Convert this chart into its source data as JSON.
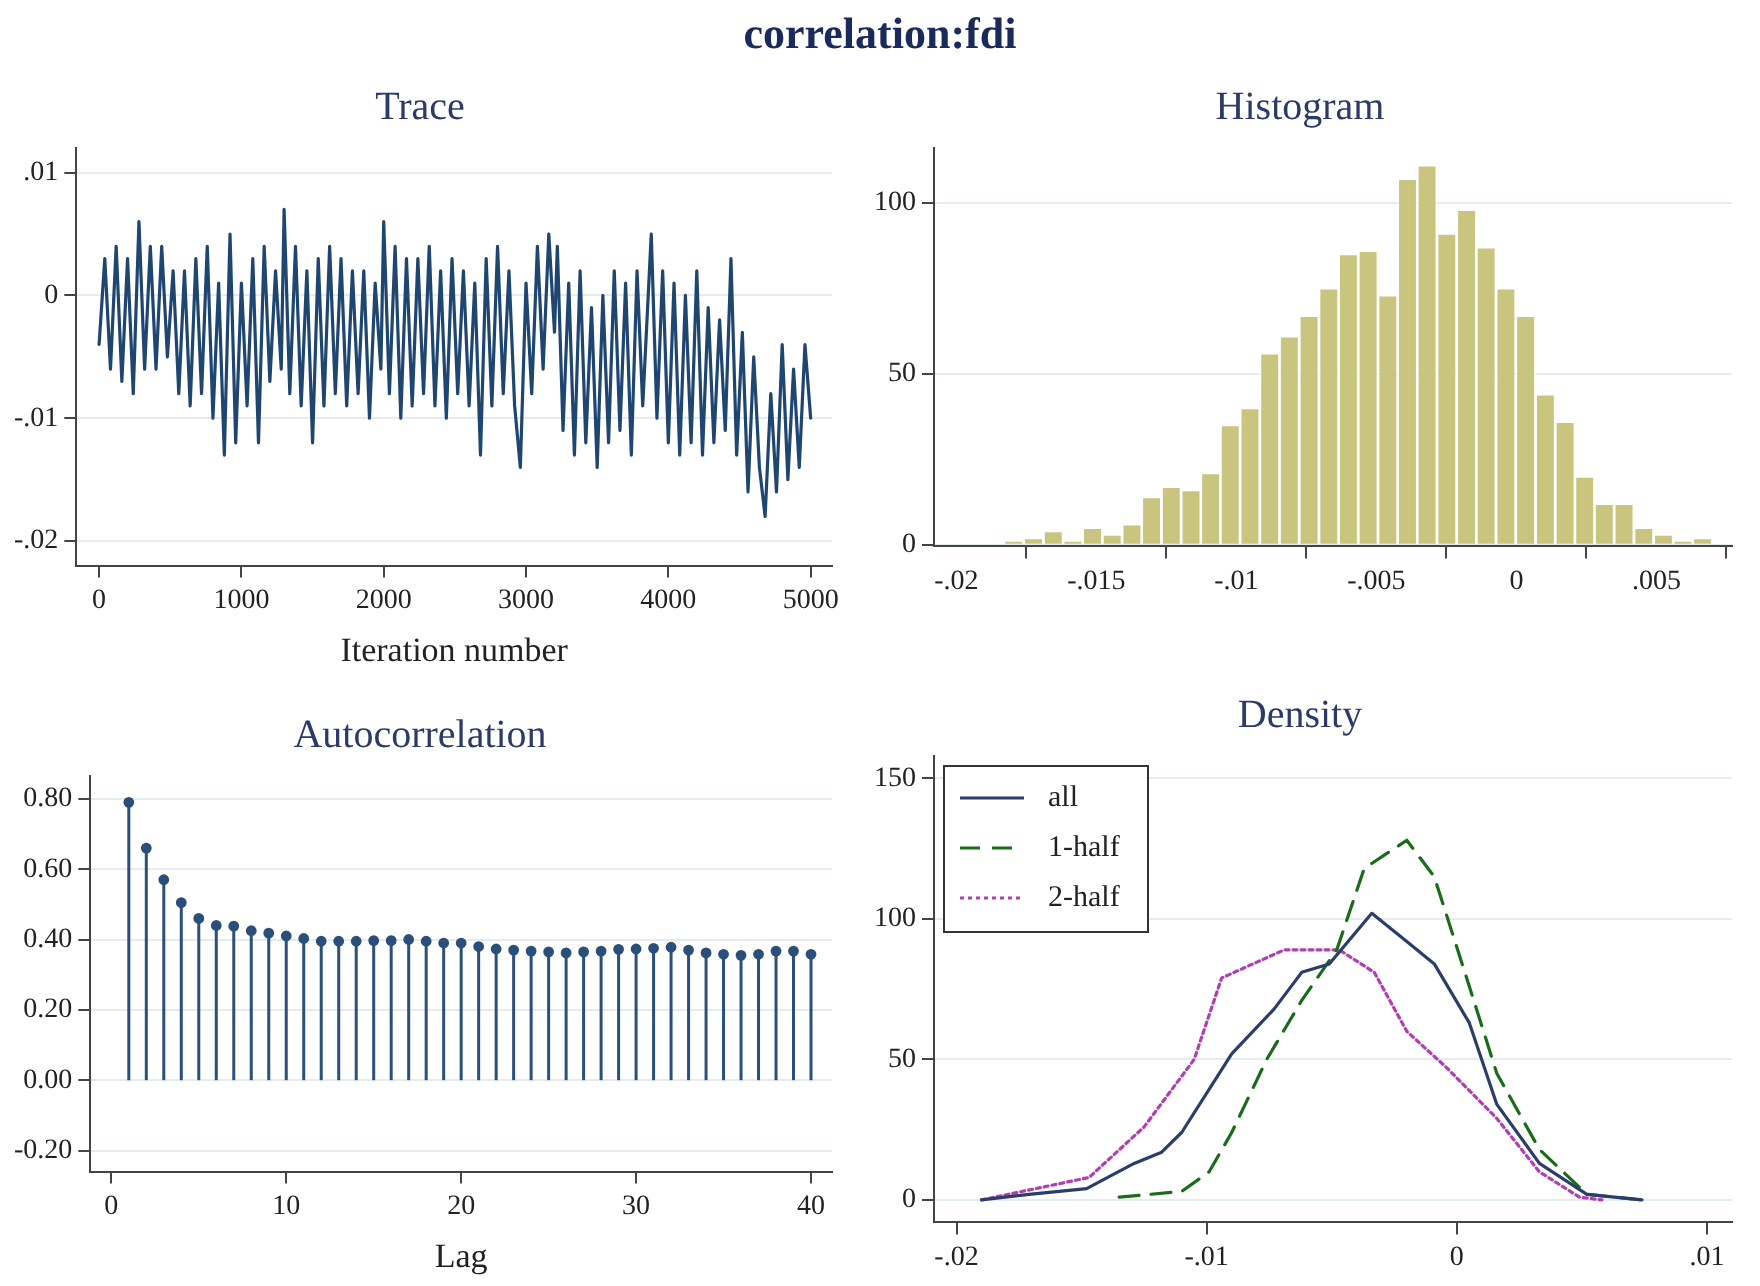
{
  "chart_data": [
    {
      "type": "line",
      "title": "Trace",
      "xlabel": "Iteration number",
      "annotations": [
        "correlation:fdi"
      ],
      "color": "#1f4670",
      "marker": "none",
      "grid": "y",
      "x": [
        0,
        40,
        80,
        120,
        160,
        200,
        240,
        280,
        320,
        360,
        400,
        440,
        480,
        520,
        560,
        600,
        640,
        680,
        720,
        760,
        800,
        840,
        880,
        920,
        960,
        1000,
        1040,
        1080,
        1120,
        1160,
        1200,
        1240,
        1280,
        1300,
        1340,
        1380,
        1420,
        1460,
        1500,
        1540,
        1580,
        1620,
        1660,
        1700,
        1740,
        1780,
        1820,
        1860,
        1900,
        1940,
        1980,
        2000,
        2040,
        2080,
        2120,
        2160,
        2200,
        2240,
        2280,
        2320,
        2360,
        2400,
        2440,
        2480,
        2520,
        2560,
        2600,
        2640,
        2680,
        2720,
        2760,
        2800,
        2840,
        2880,
        2920,
        2960,
        3000,
        3040,
        3080,
        3120,
        3160,
        3200,
        3220,
        3260,
        3300,
        3340,
        3380,
        3420,
        3460,
        3500,
        3540,
        3580,
        3620,
        3660,
        3700,
        3740,
        3780,
        3820,
        3880,
        3920,
        3960,
        4000,
        4040,
        4080,
        4120,
        4160,
        4200,
        4240,
        4280,
        4320,
        4360,
        4400,
        4440,
        4480,
        4520,
        4560,
        4600,
        4640,
        4680,
        4720,
        4760,
        4800,
        4840,
        4880,
        4920,
        4960,
        5000
      ],
      "values": [
        -0.004,
        0.003,
        -0.006,
        0.004,
        -0.007,
        0.003,
        -0.008,
        0.006,
        -0.006,
        0.004,
        -0.006,
        0.004,
        -0.005,
        0.002,
        -0.008,
        0.002,
        -0.009,
        0.003,
        -0.008,
        0.004,
        -0.01,
        0.001,
        -0.013,
        0.005,
        -0.012,
        0.001,
        -0.009,
        0.003,
        -0.012,
        0.004,
        -0.007,
        0.002,
        -0.006,
        0.007,
        -0.008,
        0.004,
        -0.009,
        0.002,
        -0.012,
        0.003,
        -0.009,
        0.004,
        -0.008,
        0.003,
        -0.009,
        0.002,
        -0.008,
        0.002,
        -0.01,
        0.001,
        -0.006,
        0.006,
        -0.008,
        0.004,
        -0.01,
        0.003,
        -0.009,
        0.003,
        -0.008,
        0.004,
        -0.009,
        0.002,
        -0.01,
        0.003,
        -0.008,
        0.002,
        -0.009,
        0.001,
        -0.013,
        0.003,
        -0.009,
        0.004,
        -0.008,
        0.002,
        -0.009,
        -0.014,
        0.001,
        -0.008,
        0.004,
        -0.006,
        0.005,
        -0.003,
        0.004,
        -0.011,
        0.001,
        -0.013,
        0.002,
        -0.012,
        -0.001,
        -0.014,
        0.0,
        -0.012,
        0.002,
        -0.011,
        0.001,
        -0.013,
        0.002,
        -0.009,
        0.005,
        -0.01,
        0.002,
        -0.012,
        0.001,
        -0.013,
        0.0,
        -0.012,
        0.002,
        -0.013,
        -0.001,
        -0.012,
        -0.002,
        -0.011,
        0.003,
        -0.013,
        -0.003,
        -0.016,
        -0.005,
        -0.014,
        -0.018,
        -0.008,
        -0.016,
        -0.004,
        -0.015,
        -0.006,
        -0.014,
        -0.004,
        -0.01
      ],
      "xlim": [
        -160,
        5150
      ],
      "xticks": [
        0,
        1000,
        2000,
        3000,
        4000,
        5000
      ],
      "ylim": [
        -0.022,
        0.012
      ],
      "yticks": [
        {
          "value": -0.02,
          "label": "-.02"
        },
        {
          "value": -0.01,
          "label": "-.01"
        },
        0,
        {
          "value": 0.01,
          "label": ".01"
        }
      ]
    },
    {
      "type": "histogram",
      "title": "Histogram",
      "color": "#c9c47e",
      "grid": "y",
      "bins": [
        -0.0183,
        -0.0176,
        -0.01689,
        -0.01619,
        -0.01549,
        -0.01479,
        -0.01408,
        -0.01338,
        -0.01268,
        -0.01197,
        -0.01127,
        -0.01057,
        -0.00987,
        -0.00916,
        -0.00846,
        -0.00776,
        -0.00705,
        -0.00635,
        -0.00565,
        -0.00494,
        -0.00424,
        -0.00354,
        -0.00284,
        -0.00213,
        -0.00143,
        -0.00073,
        -2e-05,
        0.00068,
        0.00139,
        0.00209,
        0.00279,
        0.00349,
        0.0042,
        0.0049,
        0.0056,
        0.0063,
        0.007
      ],
      "values": [
        1,
        2,
        4,
        1,
        5,
        3,
        6,
        14,
        17,
        16,
        21,
        35,
        40,
        56,
        61,
        67,
        75,
        85,
        86,
        73,
        107,
        111,
        91,
        98,
        87,
        75,
        67,
        44,
        36,
        20,
        12,
        12,
        5,
        3,
        1,
        2
      ],
      "xlim": [
        -0.0208,
        0.0077
      ],
      "xticks": [
        {
          "value": -0.02,
          "label": "-.02"
        },
        {
          "value": -0.015,
          "label": "-.015"
        },
        {
          "value": -0.01,
          "label": "-.01"
        },
        {
          "value": -0.005,
          "label": "-.005"
        },
        0,
        {
          "value": 0.005,
          "label": ".005"
        }
      ],
      "ylim": [
        -0.5,
        116
      ],
      "yticks": [
        0,
        50,
        100
      ]
    },
    {
      "type": "lollipop",
      "title": "Autocorrelation",
      "xlabel": "Lag",
      "color": "#2a4f7a",
      "marker": "circle",
      "grid": "y",
      "x": [
        1,
        2,
        3,
        4,
        5,
        6,
        7,
        8,
        9,
        10,
        11,
        12,
        13,
        14,
        15,
        16,
        17,
        18,
        19,
        20,
        21,
        22,
        23,
        24,
        25,
        26,
        27,
        28,
        29,
        30,
        31,
        32,
        33,
        34,
        35,
        36,
        37,
        38,
        39,
        40
      ],
      "values": [
        0.79,
        0.66,
        0.57,
        0.505,
        0.46,
        0.44,
        0.438,
        0.425,
        0.418,
        0.41,
        0.403,
        0.395,
        0.395,
        0.395,
        0.397,
        0.397,
        0.4,
        0.395,
        0.39,
        0.39,
        0.38,
        0.373,
        0.37,
        0.367,
        0.365,
        0.362,
        0.365,
        0.367,
        0.372,
        0.373,
        0.375,
        0.378,
        0.37,
        0.362,
        0.358,
        0.355,
        0.358,
        0.367,
        0.367,
        0.358
      ],
      "xlim": [
        -1.2,
        41.2
      ],
      "xticks": [
        0,
        10,
        20,
        30,
        40
      ],
      "ylim": [
        -0.26,
        0.865
      ],
      "yticks": [
        {
          "value": -0.2,
          "label": "-0.20"
        },
        {
          "value": 0,
          "label": "0.00"
        },
        {
          "value": 0.2,
          "label": "0.20"
        },
        {
          "value": 0.4,
          "label": "0.40"
        },
        {
          "value": 0.6,
          "label": "0.60"
        },
        {
          "value": 0.8,
          "label": "0.80"
        }
      ]
    },
    {
      "type": "line",
      "title": "Density",
      "marker": "none",
      "grid": "y",
      "legend": "top left",
      "series": [
        {
          "name": "all",
          "color": "#2b3d6b",
          "line_style": "solid",
          "x": [
            -0.019,
            -0.0171,
            -0.0148,
            -0.0129,
            -0.0118,
            -0.011,
            -0.009,
            -0.0073,
            -0.0062,
            -0.0051,
            -0.0034,
            -0.002,
            -0.0009,
            0.0005,
            0.0016,
            0.0033,
            0.0052,
            0.0074
          ],
          "values": [
            0,
            2,
            4,
            13,
            17,
            24,
            52,
            68,
            81,
            84,
            102,
            92,
            84,
            63,
            34,
            13,
            2,
            0
          ]
        },
        {
          "name": "1-half",
          "color": "#1a6b1a",
          "line_style": "dashed",
          "x": [
            -0.0135,
            -0.011,
            -0.0099,
            -0.009,
            -0.0076,
            -0.0062,
            -0.0048,
            -0.0037,
            -0.002,
            -0.0009,
            0.0005,
            0.0016,
            0.0033,
            0.0052,
            0.0074
          ],
          "values": [
            1,
            3,
            10,
            24,
            50,
            71,
            89,
            118,
            128,
            115,
            76,
            45,
            18,
            2,
            0
          ]
        },
        {
          "name": "2-half",
          "color": "#b040b0",
          "line_style": "dotted",
          "x": [
            -0.019,
            -0.0147,
            -0.0125,
            -0.0105,
            -0.0094,
            -0.0069,
            -0.0047,
            -0.0033,
            -0.002,
            -0.0004,
            0.0016,
            0.0033,
            0.0049,
            0.0058
          ],
          "values": [
            0,
            8,
            26,
            50,
            79,
            89,
            89,
            81,
            60,
            47,
            29,
            10,
            1,
            0
          ]
        }
      ],
      "xlim": [
        -0.0209,
        0.011
      ],
      "xticks": [
        {
          "value": -0.02,
          "label": "-.02"
        },
        {
          "value": -0.01,
          "label": "-.01"
        },
        0,
        {
          "value": 0.01,
          "label": ".01"
        }
      ],
      "ylim": [
        -8,
        158
      ],
      "yticks": [
        0,
        50,
        100,
        150
      ]
    }
  ]
}
